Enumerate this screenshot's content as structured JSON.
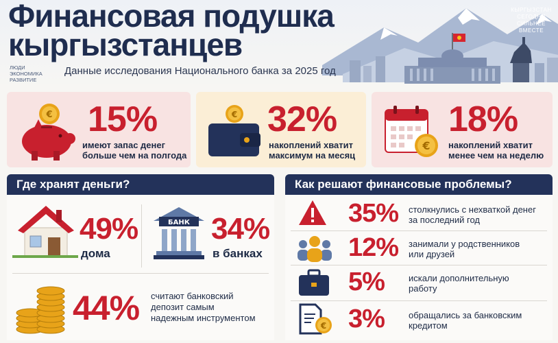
{
  "header": {
    "title_line1": "Финансовая подушка",
    "title_line2": "кыргызстанцев",
    "subtitle": "Данные исследования Национального банка за 2025 год",
    "tags": [
      "ЛЮДИ",
      "ЭКОНОМИКА",
      "РАЗВИТИЕ"
    ],
    "slogan": [
      "КЫРГЫЗСТАН",
      "СЕГОДНЯ",
      "СИЛЬНЕЕ",
      "ВМЕСТЕ"
    ]
  },
  "top_stats": [
    {
      "value": "15%",
      "text_line1": "имеют запас денег",
      "text_line2": "больше чем на полгода",
      "icon": "piggy-bank-icon"
    },
    {
      "value": "32%",
      "text_line1": "накоплений хватит",
      "text_line2": "максимум на месяц",
      "icon": "wallet-icon"
    },
    {
      "value": "18%",
      "text_line1": "накоплений хватит",
      "text_line2": "менее чем на неделю",
      "icon": "calendar-icon"
    }
  ],
  "where": {
    "heading": "Где хранят деньги?",
    "home": {
      "value": "49%",
      "label": "дома",
      "icon": "house-icon"
    },
    "banks": {
      "value": "34%",
      "label": "в банках",
      "icon": "bank-icon",
      "sign": "БАНК"
    },
    "deposit": {
      "value": "44%",
      "text_line1": "считают банковский",
      "text_line2": "депозит самым",
      "text_line3": "надежным инструментом",
      "icon": "coins-stack-icon"
    }
  },
  "problems": {
    "heading": "Как решают финансовые проблемы?",
    "rows": [
      {
        "value": "35%",
        "text_line1": "столкнулись с нехваткой денег",
        "text_line2": "за последний год",
        "icon": "warning-icon"
      },
      {
        "value": "12%",
        "text_line1": "занимали у родственников",
        "text_line2": "или друзей",
        "icon": "people-icon"
      },
      {
        "value": "5%",
        "text_line1": "искали дополнительную",
        "text_line2": "работу",
        "icon": "briefcase-icon"
      },
      {
        "value": "3%",
        "text_line1": "обращались за банковским",
        "text_line2": "кредитом",
        "icon": "credit-document-icon"
      }
    ]
  },
  "colors": {
    "accent": "#c8202e",
    "navy": "#23325a",
    "gold": "#e8a319"
  }
}
